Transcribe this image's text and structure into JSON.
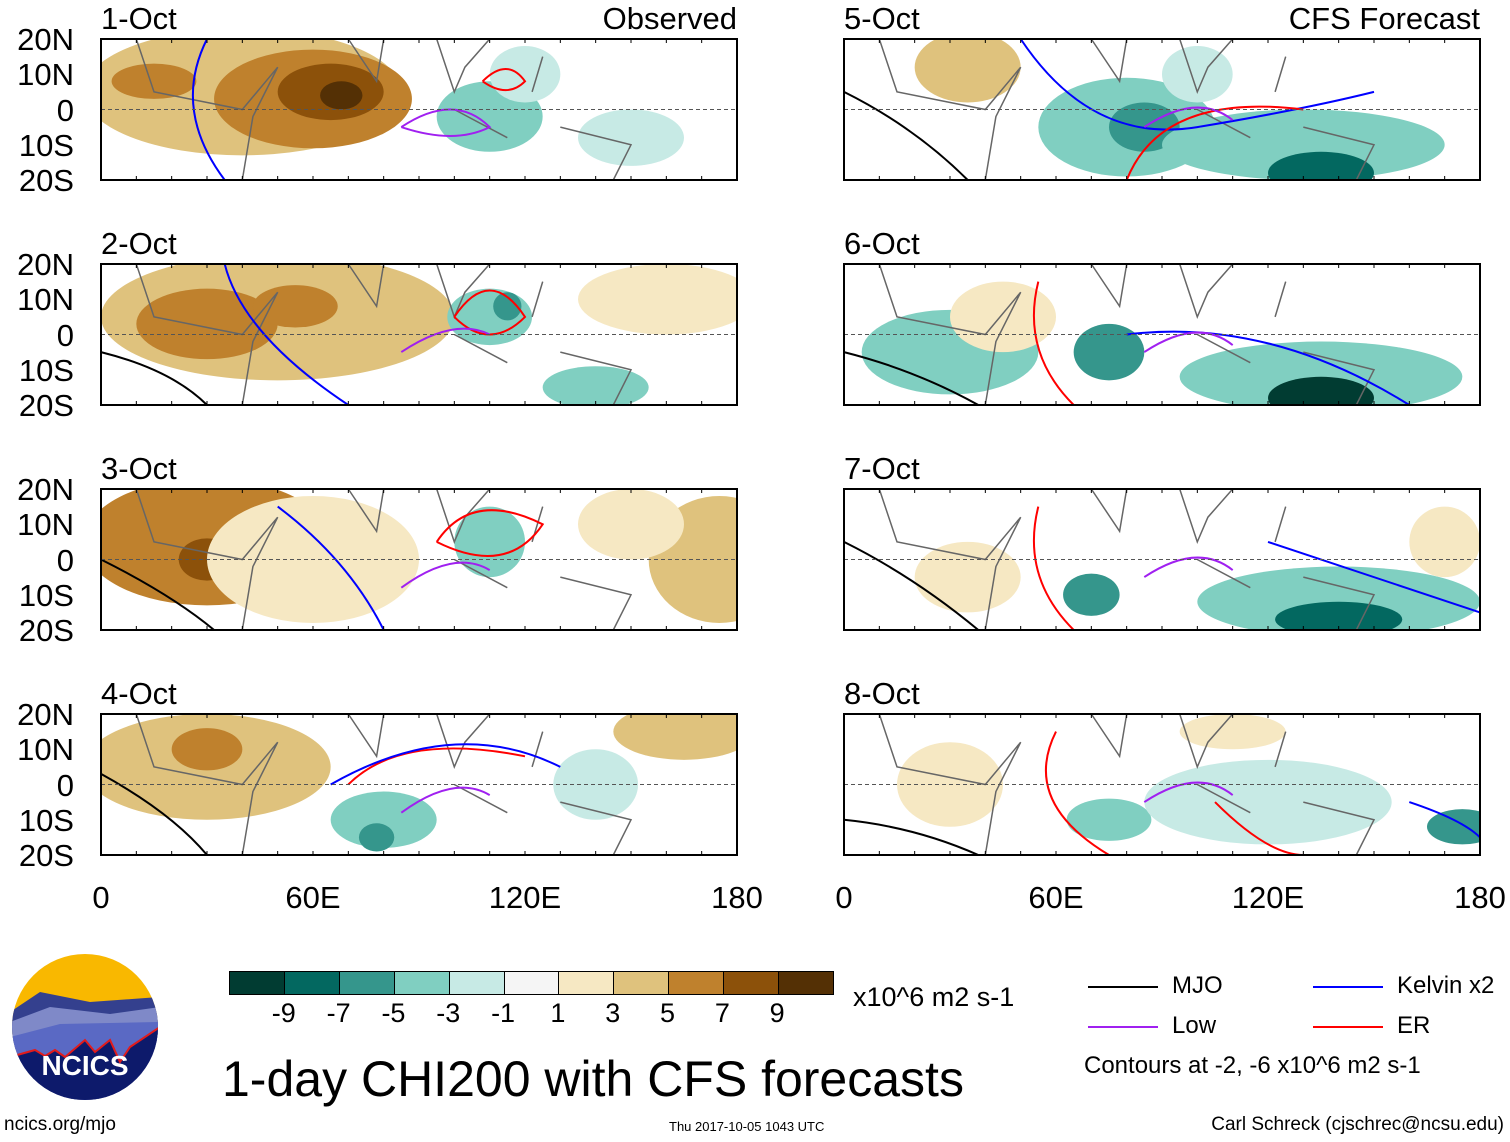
{
  "chart_data": {
    "type": "heatmap",
    "title": "1-day CHI200 with CFS forecasts",
    "units": "x10^6 m2 s-1",
    "columns": [
      {
        "heading": "Observed",
        "panels": [
          "1-Oct",
          "2-Oct",
          "3-Oct",
          "4-Oct"
        ]
      },
      {
        "heading": "CFS Forecast",
        "panels": [
          "5-Oct",
          "6-Oct",
          "7-Oct",
          "8-Oct"
        ]
      }
    ],
    "y_ticks": [
      "20N",
      "10N",
      "0",
      "10S",
      "20S"
    ],
    "x_ticks": [
      "0",
      "60E",
      "120E",
      "180"
    ],
    "xlim": [
      0,
      180
    ],
    "ylim": [
      -20,
      20
    ],
    "colorbar": {
      "ticks": [
        "-9",
        "-7",
        "-5",
        "-3",
        "-1",
        "1",
        "3",
        "5",
        "7",
        "9"
      ],
      "colors": [
        "#013c32",
        "#036860",
        "#35968c",
        "#80cfc1",
        "#c7eae5",
        "#f5f5f5",
        "#f6e8c3",
        "#dfc27d",
        "#bf812d",
        "#8c510a",
        "#543005"
      ]
    },
    "legend": [
      {
        "label": "MJO",
        "color": "#000000"
      },
      {
        "label": "Kelvin x2",
        "color": "#0000ff"
      },
      {
        "label": "Low",
        "color": "#a020f0"
      },
      {
        "label": "ER",
        "color": "#ff0000"
      }
    ],
    "contour_note": "Contours at -2, -6 x10^6 m2 s-1"
  },
  "footer": {
    "logo_text": "NCICS",
    "url": "ncics.org/mjo",
    "timestamp": "Thu 2017-10-05 1043 UTC",
    "author": "Carl Schreck (cjschrec@ncsu.edu)"
  }
}
